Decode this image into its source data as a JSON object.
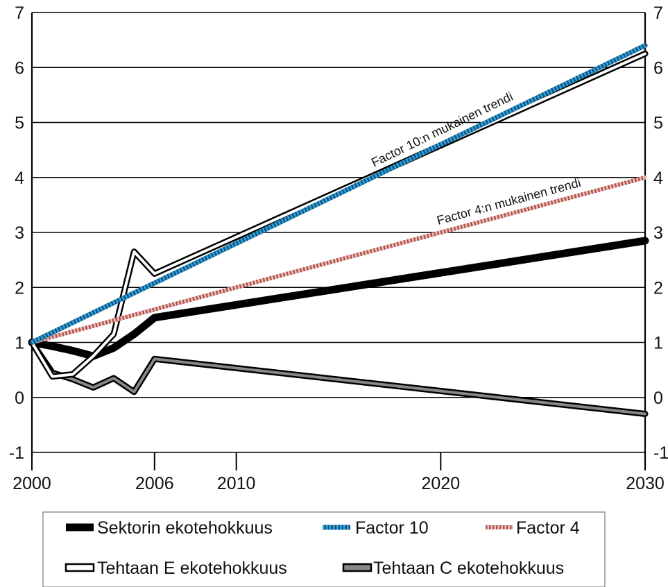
{
  "chart_data": {
    "type": "line",
    "title": "",
    "xlabel": "",
    "ylabel": "",
    "xlim": [
      2000,
      2030
    ],
    "ylim": [
      -1,
      7
    ],
    "x_ticks": [
      2000,
      2006,
      2010,
      2020,
      2030
    ],
    "y_ticks": [
      -1,
      0,
      1,
      2,
      3,
      4,
      5,
      6,
      7
    ],
    "grid": "horizontal",
    "legend_position": "bottom",
    "series": [
      {
        "name": "Sektorin ekotehokkuus",
        "key": "sektori",
        "color": "#000000",
        "style": "thick-solid",
        "x": [
          2000,
          2001,
          2002,
          2003,
          2004,
          2005,
          2006,
          2030
        ],
        "y": [
          1.0,
          0.93,
          0.85,
          0.75,
          0.9,
          1.15,
          1.45,
          2.85
        ]
      },
      {
        "name": "Factor 10",
        "key": "factor10",
        "color": "#29a9e1",
        "style": "dotted-blue",
        "x": [
          2000,
          2030
        ],
        "y": [
          1.0,
          6.4
        ]
      },
      {
        "name": "Factor 4",
        "key": "factor4",
        "color": "#b5514a",
        "style": "dotted-red",
        "x": [
          2000,
          2030
        ],
        "y": [
          1.0,
          4.0
        ]
      },
      {
        "name": "Tehtaan E ekotehokkuus",
        "key": "tehdas_e",
        "color": "#000000",
        "style": "double-white",
        "x": [
          2000,
          2001,
          2002,
          2003,
          2004,
          2005,
          2006,
          2030
        ],
        "y": [
          1.0,
          0.38,
          0.42,
          0.75,
          1.15,
          2.65,
          2.25,
          6.25
        ]
      },
      {
        "name": "Tehtaan C ekotehokkuus",
        "key": "tehdas_c",
        "color": "#888888",
        "style": "double-gray",
        "x": [
          2000,
          2001,
          2002,
          2003,
          2004,
          2005,
          2006,
          2030
        ],
        "y": [
          1.0,
          0.45,
          0.33,
          0.18,
          0.35,
          0.1,
          0.7,
          -0.3
        ]
      }
    ],
    "annotations": [
      {
        "key": "a10",
        "text": "Factor 10:n mukainen trendi"
      },
      {
        "key": "a4",
        "text": "Factor 4:n mukainen trendi"
      }
    ]
  }
}
